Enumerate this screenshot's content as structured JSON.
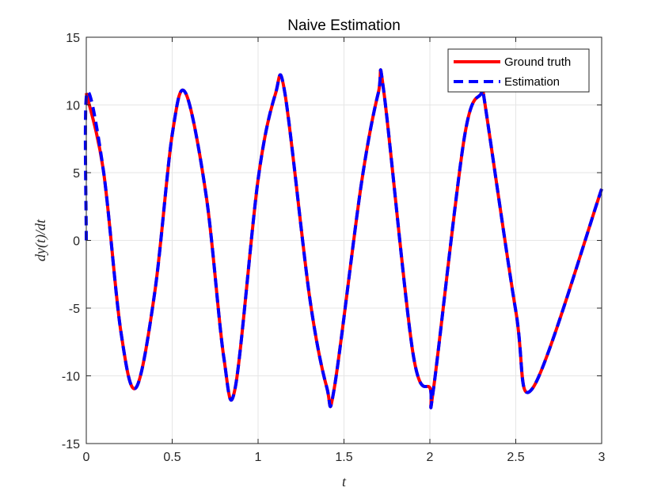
{
  "chart_data": {
    "type": "line",
    "title": "Naive Estimation",
    "xlabel": "t",
    "ylabel": "dy(t)/dt",
    "xlim": [
      0,
      3
    ],
    "ylim": [
      -15,
      15
    ],
    "xticks": [
      0,
      0.5,
      1,
      1.5,
      2,
      2.5,
      3
    ],
    "xtick_labels": [
      "0",
      "0.5",
      "1",
      "1.5",
      "2",
      "2.5",
      "3"
    ],
    "yticks": [
      -15,
      -10,
      -5,
      0,
      5,
      10,
      15
    ],
    "ytick_labels": [
      "-15",
      "-10",
      "-5",
      "0",
      "5",
      "10",
      "15"
    ],
    "grid": true,
    "legend_position": "top-right",
    "series": [
      {
        "name": "Ground truth",
        "color": "#ff0000",
        "style": "solid",
        "x": [
          0,
          0.1,
          0.2,
          0.289,
          0.4,
          0.5,
          0.578,
          0.7,
          0.8,
          0.867,
          1.0,
          1.1,
          1.156,
          1.3,
          1.4,
          1.444,
          1.6,
          1.7,
          1.733,
          1.9,
          2.0,
          2.022,
          2.2,
          2.3,
          2.311,
          2.5,
          2.6,
          3.0
        ],
        "y": [
          10.88,
          5.12,
          -6.62,
          -10.88,
          -3.7,
          7.8,
          10.88,
          3.11,
          -8.6,
          -10.88,
          4.49,
          10.77,
          10.88,
          -4.19,
          -10.86,
          -10.88,
          4.08,
          10.9,
          10.88,
          -8.2,
          -10.88,
          -10.88,
          7.55,
          10.87,
          10.88,
          -5.2,
          -10.88,
          3.8
        ]
      },
      {
        "name": "Estimation",
        "color": "#0000ff",
        "style": "dashed",
        "x": [
          0,
          0.003,
          0.1,
          0.2,
          0.289,
          0.4,
          0.5,
          0.578,
          0.7,
          0.8,
          0.867,
          1.0,
          1.1,
          1.156,
          1.3,
          1.4,
          1.444,
          1.6,
          1.7,
          1.733,
          1.9,
          2.0,
          2.022,
          2.2,
          2.3,
          2.311,
          2.5,
          2.6,
          3.0
        ],
        "y": [
          0,
          10.85,
          5.12,
          -6.62,
          -10.88,
          -3.7,
          7.8,
          10.88,
          3.11,
          -8.6,
          -10.88,
          4.49,
          10.77,
          10.88,
          -4.19,
          -10.86,
          -10.88,
          4.08,
          10.9,
          10.88,
          -8.2,
          -10.88,
          -10.88,
          7.55,
          10.87,
          10.88,
          -5.2,
          -10.88,
          3.8
        ]
      }
    ]
  }
}
